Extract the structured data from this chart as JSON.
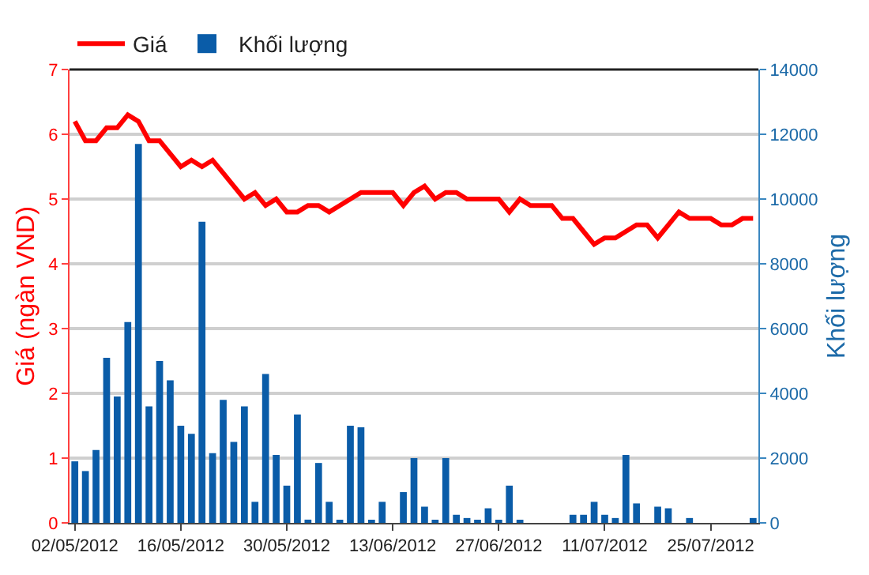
{
  "chart_data": {
    "type": "bar",
    "categories": [
      "02/05/2012",
      null,
      null,
      null,
      null,
      null,
      null,
      null,
      null,
      null,
      "16/05/2012",
      null,
      null,
      null,
      null,
      null,
      null,
      null,
      null,
      null,
      "30/05/2012",
      null,
      null,
      null,
      null,
      null,
      null,
      null,
      null,
      null,
      "13/06/2012",
      null,
      null,
      null,
      null,
      null,
      null,
      null,
      null,
      null,
      "27/06/2012",
      null,
      null,
      null,
      null,
      null,
      null,
      null,
      null,
      null,
      "11/07/2012",
      null,
      null,
      null,
      null,
      null,
      null,
      null,
      null,
      null,
      "25/07/2012",
      null,
      null,
      null,
      null
    ],
    "series": [
      {
        "name": "Giá",
        "type": "line",
        "color": "#ff0000",
        "axis": "y",
        "values": [
          6.2,
          5.9,
          5.9,
          6.1,
          6.1,
          6.3,
          6.2,
          5.9,
          5.9,
          5.7,
          5.5,
          5.6,
          5.5,
          5.6,
          5.4,
          5.2,
          5.0,
          5.1,
          4.9,
          5.0,
          4.8,
          4.8,
          4.9,
          4.9,
          4.8,
          4.9,
          5.0,
          5.1,
          5.1,
          5.1,
          5.1,
          4.9,
          5.1,
          5.2,
          5.0,
          5.1,
          5.1,
          5.0,
          5.0,
          5.0,
          5.0,
          4.8,
          5.0,
          4.9,
          4.9,
          4.9,
          4.7,
          4.7,
          4.5,
          4.3,
          4.4,
          4.4,
          4.5,
          4.6,
          4.6,
          4.4,
          4.6,
          4.8,
          4.7,
          4.7,
          4.7,
          4.6,
          4.6,
          4.7,
          4.7
        ]
      },
      {
        "name": "Khối lượng",
        "color": "#0a5ca8",
        "axis": "y2",
        "values": [
          1900,
          1600,
          2250,
          5100,
          3900,
          6200,
          11700,
          3600,
          5000,
          4400,
          3000,
          2750,
          9300,
          2150,
          3800,
          2500,
          3600,
          650,
          4600,
          2100,
          1150,
          3350,
          100,
          1850,
          650,
          50,
          3000,
          2950,
          50,
          650,
          null,
          950,
          2000,
          500,
          50,
          2000,
          250,
          150,
          50,
          450,
          50,
          1150,
          50,
          null,
          null,
          null,
          null,
          250,
          250,
          650,
          250,
          150,
          2100,
          600,
          null,
          500,
          450,
          null,
          150,
          null,
          null,
          null,
          null,
          null,
          150
        ]
      }
    ],
    "ylabel": "Giá (ngàn VND)",
    "y2label": "Khối lượng",
    "ylim": [
      0,
      7
    ],
    "yticks": [
      0,
      1,
      2,
      3,
      4,
      5,
      6,
      7
    ],
    "y2lim": [
      0,
      14000
    ],
    "y2ticks": [
      0,
      2000,
      4000,
      6000,
      8000,
      10000,
      12000,
      14000
    ],
    "grid": "y",
    "legend": "top left"
  }
}
